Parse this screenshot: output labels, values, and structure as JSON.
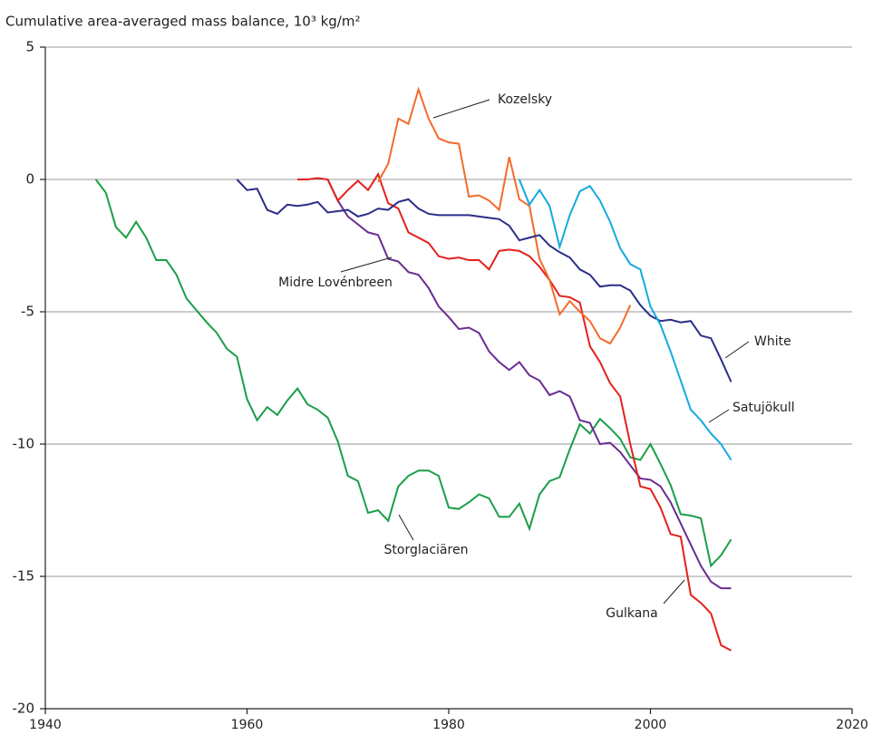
{
  "chart_data": {
    "type": "line",
    "title": "Cumulative area-averaged mass balance, 10³ kg/m²",
    "xlim": [
      1940,
      2020
    ],
    "xticks": [
      1940,
      1960,
      1980,
      2000,
      2020
    ],
    "ylim": [
      -20,
      5
    ],
    "yticks": [
      -20,
      -15,
      -10,
      -5,
      0,
      5
    ],
    "grid": true,
    "series": [
      {
        "name": "Storglaciären",
        "color": "#1a9e48",
        "x": [
          1945,
          1946,
          1947,
          1948,
          1949,
          1950,
          1951,
          1952,
          1953,
          1954,
          1955,
          1956,
          1957,
          1958,
          1959,
          1960,
          1961,
          1962,
          1963,
          1964,
          1965,
          1966,
          1967,
          1968,
          1969,
          1970,
          1971,
          1972,
          1973,
          1974,
          1975,
          1976,
          1977,
          1978,
          1979,
          1980,
          1981,
          1982,
          1983,
          1984,
          1985,
          1986,
          1987,
          1988,
          1989,
          1990,
          1991,
          1992,
          1993,
          1994,
          1995,
          1996,
          1997,
          1998,
          1999,
          2000,
          2001,
          2002,
          2003,
          2004,
          2005,
          2006,
          2007,
          2008
        ],
        "values": [
          0,
          -0.5,
          -1.8,
          -2.2,
          -1.6,
          -2.2,
          -3.05,
          -3.05,
          -3.6,
          -4.5,
          -4.95,
          -5.4,
          -5.8,
          -6.4,
          -6.7,
          -8.3,
          -9.1,
          -8.6,
          -8.9,
          -8.35,
          -7.9,
          -8.5,
          -8.7,
          -9.0,
          -9.9,
          -11.2,
          -11.4,
          -12.6,
          -12.5,
          -12.9,
          -11.6,
          -11.2,
          -11.0,
          -11.0,
          -11.2,
          -12.4,
          -12.45,
          -12.2,
          -11.9,
          -12.05,
          -12.75,
          -12.75,
          -12.25,
          -13.2,
          -11.9,
          -11.4,
          -11.25,
          -10.2,
          -9.25,
          -9.6,
          -9.05,
          -9.4,
          -9.8,
          -10.5,
          -10.6,
          -10.0,
          -10.75,
          -11.55,
          -12.65,
          -12.7,
          -12.8,
          -14.6,
          -14.2,
          -13.6
        ]
      },
      {
        "name": "Midre Lovénbreen",
        "color": "#6a2c91",
        "x": [
          1968,
          1969,
          1970,
          1971,
          1972,
          1973,
          1974,
          1975,
          1976,
          1977,
          1978,
          1979,
          1980,
          1981,
          1982,
          1983,
          1984,
          1985,
          1986,
          1987,
          1988,
          1989,
          1990,
          1991,
          1992,
          1993,
          1994,
          1995,
          1996,
          1997,
          1998,
          1999,
          2000,
          2001,
          2002,
          2003,
          2004,
          2005,
          2006,
          2007,
          2008
        ],
        "values": [
          0,
          -0.8,
          -1.4,
          -1.7,
          -2.0,
          -2.1,
          -3.0,
          -3.1,
          -3.5,
          -3.6,
          -4.1,
          -4.8,
          -5.2,
          -5.65,
          -5.6,
          -5.8,
          -6.5,
          -6.9,
          -7.2,
          -6.9,
          -7.4,
          -7.6,
          -8.15,
          -8.0,
          -8.2,
          -9.1,
          -9.2,
          -10.0,
          -9.95,
          -10.3,
          -10.8,
          -11.3,
          -11.35,
          -11.6,
          -12.2,
          -13.0,
          -13.8,
          -14.6,
          -15.2,
          -15.45,
          -15.45
        ]
      },
      {
        "name": "Gulkana",
        "color": "#e3211c",
        "x": [
          1965,
          1966,
          1967,
          1968,
          1969,
          1970,
          1971,
          1972,
          1973,
          1974,
          1975,
          1976,
          1977,
          1978,
          1979,
          1980,
          1981,
          1982,
          1983,
          1984,
          1985,
          1986,
          1987,
          1988,
          1989,
          1990,
          1991,
          1992,
          1993,
          1994,
          1995,
          1996,
          1997,
          1998,
          1999,
          2000,
          2001,
          2002,
          2003,
          2004,
          2005,
          2006,
          2007,
          2008
        ],
        "values": [
          0,
          0,
          0.05,
          0,
          -0.8,
          -0.4,
          -0.05,
          -0.4,
          0.2,
          -0.9,
          -1.1,
          -2.0,
          -2.2,
          -2.4,
          -2.9,
          -3.0,
          -2.95,
          -3.05,
          -3.05,
          -3.4,
          -2.7,
          -2.65,
          -2.7,
          -2.9,
          -3.3,
          -3.8,
          -4.4,
          -4.45,
          -4.65,
          -6.3,
          -6.9,
          -7.7,
          -8.2,
          -10.0,
          -11.6,
          -11.7,
          -12.4,
          -13.4,
          -13.5,
          -15.7,
          -16.0,
          -16.4,
          -17.6,
          -17.8
        ]
      },
      {
        "name": "Kozelsky",
        "color": "#f26b2b",
        "x": [
          1973,
          1974,
          1975,
          1976,
          1977,
          1978,
          1979,
          1980,
          1981,
          1982,
          1983,
          1984,
          1985,
          1986,
          1987,
          1988,
          1989,
          1990,
          1991,
          1992,
          1993,
          1994,
          1995,
          1996,
          1997,
          1998
        ],
        "values": [
          -0.1,
          0.6,
          2.3,
          2.1,
          3.4,
          2.3,
          1.55,
          1.4,
          1.35,
          -0.65,
          -0.6,
          -0.8,
          -1.15,
          0.85,
          -0.75,
          -1.0,
          -3.0,
          -3.8,
          -5.1,
          -4.6,
          -5.0,
          -5.35,
          -6.0,
          -6.2,
          -5.6,
          -4.75
        ]
      },
      {
        "name": "White",
        "color": "#2b2d86",
        "x": [
          1959,
          1960,
          1961,
          1962,
          1963,
          1964,
          1965,
          1966,
          1967,
          1968,
          1969,
          1970,
          1971,
          1972,
          1973,
          1974,
          1975,
          1976,
          1977,
          1978,
          1979,
          1980,
          1981,
          1982,
          1983,
          1984,
          1985,
          1986,
          1987,
          1988,
          1989,
          1990,
          1991,
          1992,
          1993,
          1994,
          1995,
          1996,
          1997,
          1998,
          1999,
          2000,
          2001,
          2002,
          2003,
          2004,
          2005,
          2006,
          2007,
          2008
        ],
        "values": [
          0,
          -0.4,
          -0.35,
          -1.15,
          -1.3,
          -0.95,
          -1.0,
          -0.95,
          -0.85,
          -1.25,
          -1.2,
          -1.15,
          -1.4,
          -1.3,
          -1.1,
          -1.15,
          -0.85,
          -0.75,
          -1.1,
          -1.3,
          -1.35,
          -1.35,
          -1.35,
          -1.35,
          -1.4,
          -1.45,
          -1.5,
          -1.75,
          -2.3,
          -2.2,
          -2.1,
          -2.5,
          -2.75,
          -2.95,
          -3.4,
          -3.6,
          -4.05,
          -4.0,
          -4.0,
          -4.2,
          -4.75,
          -5.15,
          -5.35,
          -5.3,
          -5.4,
          -5.35,
          -5.9,
          -6.0,
          -6.8,
          -7.65
        ]
      },
      {
        "name": "Satujökull",
        "color": "#14a9e1",
        "x": [
          1987,
          1988,
          1989,
          1990,
          1991,
          1992,
          1993,
          1994,
          1995,
          1996,
          1997,
          1998,
          1999,
          2000,
          2001,
          2002,
          2003,
          2004,
          2005,
          2006,
          2007,
          2008
        ],
        "values": [
          0,
          -0.95,
          -0.4,
          -1.0,
          -2.55,
          -1.35,
          -0.45,
          -0.25,
          -0.8,
          -1.6,
          -2.6,
          -3.2,
          -3.4,
          -4.8,
          -5.5,
          -6.5,
          -7.6,
          -8.7,
          -9.1,
          -9.6,
          -10.0,
          -10.6
        ]
      }
    ]
  }
}
